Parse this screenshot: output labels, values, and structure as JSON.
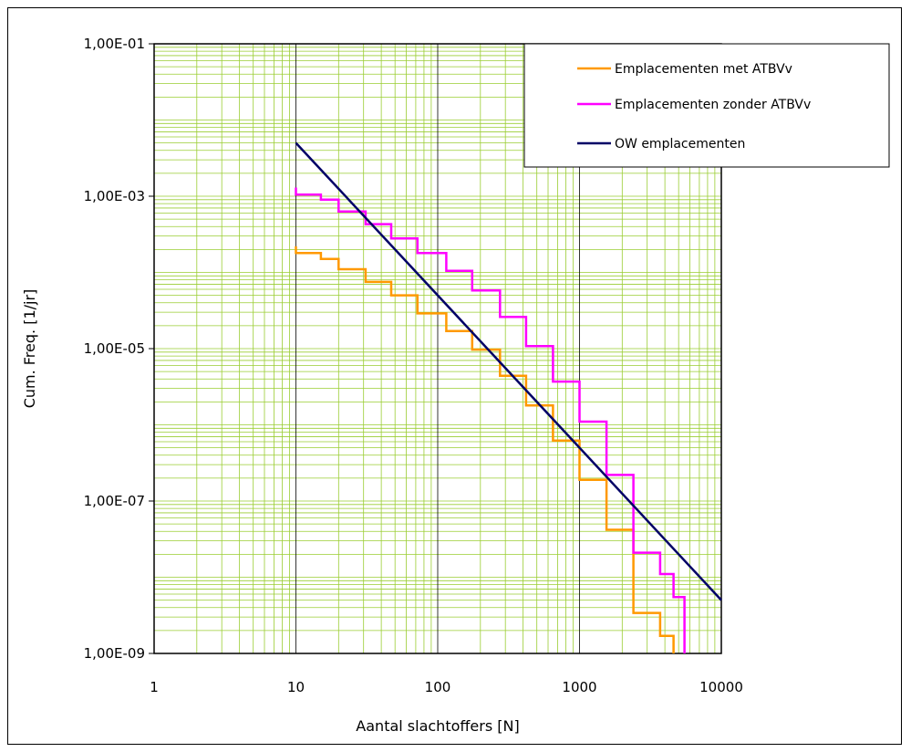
{
  "chart_data": {
    "type": "line",
    "title": "",
    "xlabel": "Aantal slachtoffers [N]",
    "ylabel": "Cum. Freq. [1/jr]",
    "x_scale": "log",
    "y_scale": "log",
    "xlim": [
      1,
      10000
    ],
    "ylim": [
      1e-09,
      0.1
    ],
    "x_tick_labels": [
      "1",
      "10",
      "100",
      "1000",
      "10000"
    ],
    "y_tick_labels": [
      "1,00E-09",
      "1,00E-07",
      "1,00E-05",
      "1,00E-03",
      "1,00E-01"
    ],
    "grid": true,
    "legend_position": "top-right",
    "colors": {
      "minor_grid": "#9acd32",
      "major_grid": "#000000",
      "met": "#ff9900",
      "zonder": "#ff00ff",
      "ow": "#000066"
    },
    "series": [
      {
        "name": "Emplacementen met ATBVv",
        "style": "step",
        "color": "#ff9900",
        "points": [
          [
            10,
            0.00022
          ],
          [
            10,
            0.00018
          ],
          [
            15,
            0.00018
          ],
          [
            15,
            0.00015
          ],
          [
            20,
            0.00015
          ],
          [
            20,
            0.00011
          ],
          [
            31,
            0.00011
          ],
          [
            31,
            7.5e-05
          ],
          [
            47,
            7.5e-05
          ],
          [
            47,
            5e-05
          ],
          [
            72,
            5e-05
          ],
          [
            72,
            2.9e-05
          ],
          [
            115,
            2.9e-05
          ],
          [
            115,
            1.7e-05
          ],
          [
            175,
            1.7e-05
          ],
          [
            175,
            9.7e-06
          ],
          [
            275,
            9.7e-06
          ],
          [
            275,
            4.4e-06
          ],
          [
            420,
            4.4e-06
          ],
          [
            420,
            1.8e-06
          ],
          [
            650,
            1.8e-06
          ],
          [
            650,
            6.2e-07
          ],
          [
            1000,
            6.2e-07
          ],
          [
            1000,
            1.9e-07
          ],
          [
            1550,
            1.9e-07
          ],
          [
            1550,
            4.2e-08
          ],
          [
            2400,
            4.2e-08
          ],
          [
            2400,
            3.4e-09
          ],
          [
            3700,
            3.4e-09
          ],
          [
            3700,
            1.7e-09
          ],
          [
            4600,
            1.7e-09
          ],
          [
            4600,
            1e-09
          ]
        ]
      },
      {
        "name": "Emplacementen zonder ATBVv",
        "style": "step",
        "color": "#ff00ff",
        "points": [
          [
            10,
            0.0013
          ],
          [
            10,
            0.00105
          ],
          [
            15,
            0.00105
          ],
          [
            15,
            0.0009
          ],
          [
            20,
            0.0009
          ],
          [
            20,
            0.00063
          ],
          [
            31,
            0.00063
          ],
          [
            31,
            0.00043
          ],
          [
            47,
            0.00043
          ],
          [
            47,
            0.00028
          ],
          [
            72,
            0.00028
          ],
          [
            72,
            0.00018
          ],
          [
            115,
            0.00018
          ],
          [
            115,
            0.000105
          ],
          [
            175,
            0.000105
          ],
          [
            175,
            5.8e-05
          ],
          [
            275,
            5.8e-05
          ],
          [
            275,
            2.6e-05
          ],
          [
            420,
            2.6e-05
          ],
          [
            420,
            1.08e-05
          ],
          [
            650,
            1.08e-05
          ],
          [
            650,
            3.7e-06
          ],
          [
            1000,
            3.7e-06
          ],
          [
            1000,
            1.1e-06
          ],
          [
            1550,
            1.1e-06
          ],
          [
            1550,
            2.2e-07
          ],
          [
            2400,
            2.2e-07
          ],
          [
            2400,
            2.1e-08
          ],
          [
            3700,
            2.1e-08
          ],
          [
            3700,
            1.1e-08
          ],
          [
            4600,
            1.1e-08
          ],
          [
            4600,
            5.5e-09
          ],
          [
            5500,
            5.5e-09
          ],
          [
            5500,
            1e-09
          ]
        ]
      },
      {
        "name": "OW emplacementen",
        "style": "line",
        "color": "#000066",
        "points": [
          [
            10,
            0.005
          ],
          [
            10000,
            5e-09
          ]
        ]
      }
    ]
  }
}
